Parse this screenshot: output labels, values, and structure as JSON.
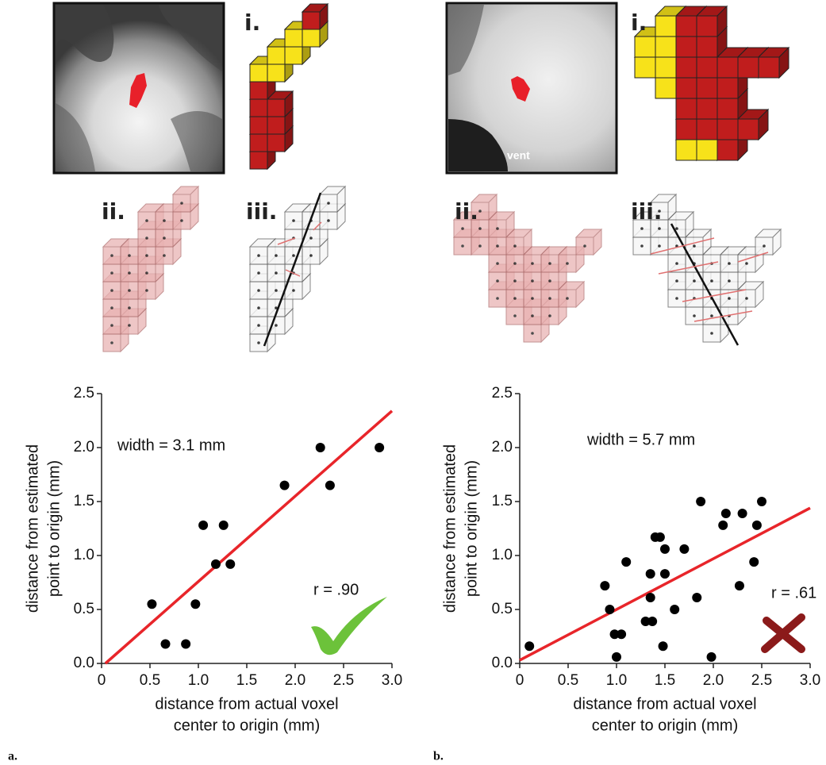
{
  "figure": {
    "panels": [
      {
        "label": "a.",
        "insets": [
          "i.",
          "ii.",
          "iii."
        ]
      },
      {
        "label": "b.",
        "insets": [
          "i.",
          "ii.",
          "iii."
        ],
        "image_label": "vent"
      }
    ]
  },
  "chart_data": [
    {
      "type": "scatter",
      "xlabel": [
        "distance from actual voxel",
        "center to origin (mm)"
      ],
      "ylabel": [
        "distance from estimated",
        "point to origin (mm)"
      ],
      "annotations": [
        "width = 3.1 mm",
        "r = .90"
      ],
      "x": [
        0.52,
        0.66,
        0.87,
        0.97,
        1.05,
        1.26,
        1.18,
        1.33,
        1.89,
        2.26,
        2.36,
        2.87
      ],
      "values": [
        0.55,
        0.18,
        0.18,
        0.55,
        1.28,
        1.28,
        0.92,
        0.92,
        1.65,
        2.0,
        1.65,
        2.0
      ],
      "color": "#000000",
      "fit": {
        "x": [
          0.04,
          3.0
        ],
        "y": [
          0,
          2.34
        ],
        "color": "#e8252a"
      },
      "xlim": [
        0,
        3
      ],
      "ylim": [
        0,
        2.5
      ],
      "xticks": [
        0,
        0.5,
        {
          "value": 1,
          "label": "1.0"
        },
        1.5,
        {
          "value": 2,
          "label": "2.0"
        },
        2.5,
        {
          "value": 3,
          "label": "3.0"
        }
      ],
      "yticks": [
        {
          "value": 0,
          "label": "0.0"
        },
        0.5,
        {
          "value": 1,
          "label": "1.0"
        },
        1.5,
        {
          "value": 2,
          "label": "2.0"
        },
        2.5
      ]
    },
    {
      "type": "scatter",
      "xlabel": [
        "distance from actual voxel",
        "center to origin (mm)"
      ],
      "ylabel": [
        "distance from estimated",
        "point to origin (mm)"
      ],
      "annotations": [
        "width = 5.7 mm",
        "r = .61"
      ],
      "x": [
        0.1,
        0.88,
        0.93,
        0.98,
        1.0,
        1.05,
        1.1,
        1.3,
        1.35,
        1.35,
        1.37,
        1.4,
        1.45,
        1.48,
        1.5,
        1.5,
        1.6,
        1.7,
        1.83,
        1.87,
        1.98,
        2.1,
        2.13,
        2.27,
        2.3,
        2.42,
        2.45,
        2.5
      ],
      "values": [
        0.16,
        0.72,
        0.5,
        0.27,
        0.06,
        0.27,
        0.94,
        0.39,
        0.83,
        0.61,
        0.39,
        1.17,
        1.17,
        0.16,
        1.06,
        0.83,
        0.5,
        1.06,
        0.61,
        1.5,
        0.06,
        1.28,
        1.39,
        0.72,
        1.39,
        0.94,
        1.28,
        1.5
      ],
      "color": "#000000",
      "fit": {
        "x": [
          0,
          3.0
        ],
        "y": [
          0.03,
          1.44
        ],
        "color": "#e8252a"
      },
      "xlim": [
        0,
        3
      ],
      "ylim": [
        0,
        2.5
      ],
      "xticks": [
        0,
        0.5,
        {
          "value": 1,
          "label": "1.0"
        },
        1.5,
        {
          "value": 2,
          "label": "2.0"
        },
        2.5,
        {
          "value": 3,
          "label": "3.0"
        }
      ],
      "yticks": [
        {
          "value": 0,
          "label": "0.0"
        },
        0.5,
        {
          "value": 1,
          "label": "1.0"
        },
        1.5,
        {
          "value": 2,
          "label": "2.0"
        },
        2.5
      ]
    }
  ]
}
